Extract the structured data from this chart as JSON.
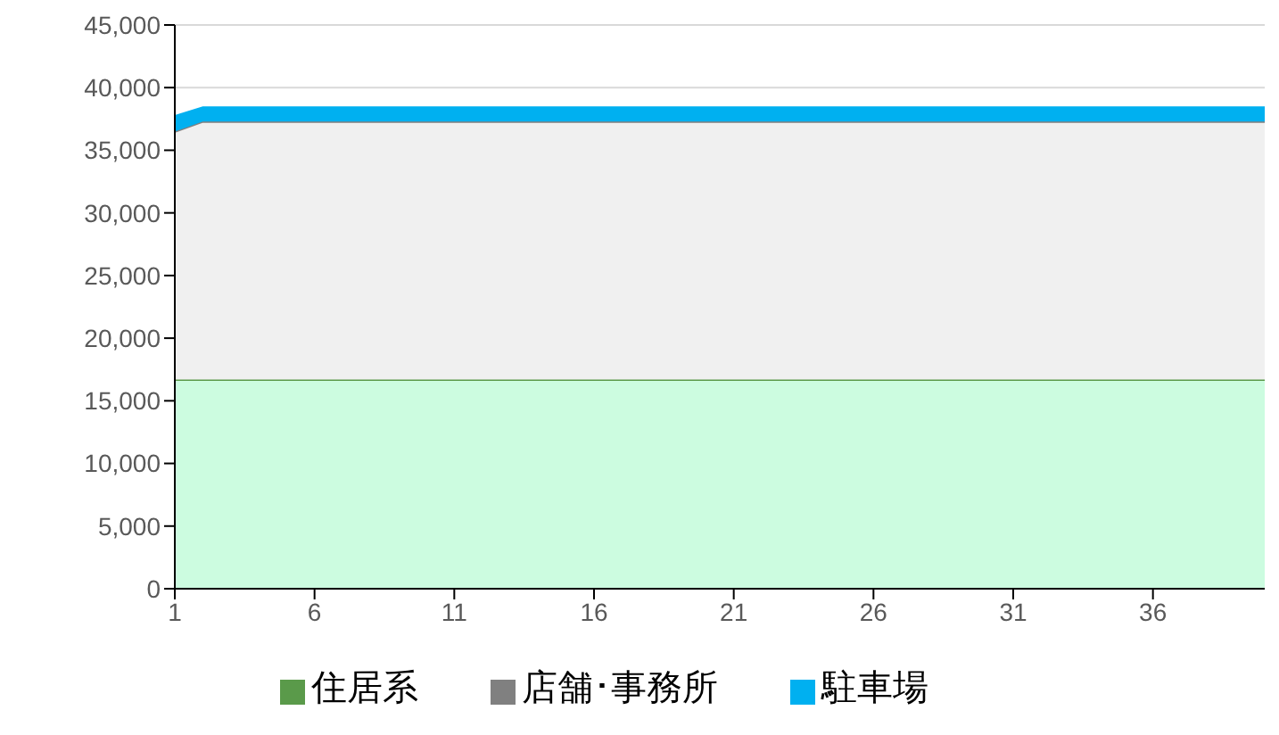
{
  "chart_data": {
    "type": "area",
    "stacked": true,
    "x": [
      1,
      2,
      3,
      4,
      5,
      6,
      7,
      8,
      9,
      10,
      11,
      12,
      13,
      14,
      15,
      16,
      17,
      18,
      19,
      20,
      21,
      22,
      23,
      24,
      25,
      26,
      27,
      28,
      29,
      30,
      31,
      32,
      33,
      34,
      35,
      36,
      37,
      38,
      39,
      40
    ],
    "series": [
      {
        "name": "住居系",
        "color": "#ccfce0",
        "values": [
          16700,
          16700,
          16700,
          16700,
          16700,
          16700,
          16700,
          16700,
          16700,
          16700,
          16700,
          16700,
          16700,
          16700,
          16700,
          16700,
          16700,
          16700,
          16700,
          16700,
          16700,
          16700,
          16700,
          16700,
          16700,
          16700,
          16700,
          16700,
          16700,
          16700,
          16700,
          16700,
          16700,
          16700,
          16700,
          16700,
          16700,
          16700,
          16700,
          16700
        ]
      },
      {
        "name": "店舗･事務所",
        "color": "#f0f0f0",
        "values": [
          19800,
          20600,
          20600,
          20600,
          20600,
          20600,
          20600,
          20600,
          20600,
          20600,
          20600,
          20600,
          20600,
          20600,
          20600,
          20600,
          20600,
          20600,
          20600,
          20600,
          20600,
          20600,
          20600,
          20600,
          20600,
          20600,
          20600,
          20600,
          20600,
          20600,
          20600,
          20600,
          20600,
          20600,
          20600,
          20600,
          20600,
          20600,
          20600,
          20600
        ]
      },
      {
        "name": "駐車場",
        "color": "#00b0f0",
        "values": [
          1300,
          1200,
          1200,
          1200,
          1200,
          1200,
          1200,
          1200,
          1200,
          1200,
          1200,
          1200,
          1200,
          1200,
          1200,
          1200,
          1200,
          1200,
          1200,
          1200,
          1200,
          1200,
          1200,
          1200,
          1200,
          1200,
          1200,
          1200,
          1200,
          1200,
          1200,
          1200,
          1200,
          1200,
          1200,
          1200,
          1200,
          1200,
          1200,
          1200
        ]
      }
    ],
    "xlim": [
      1,
      40
    ],
    "xticks": [
      1,
      6,
      11,
      16,
      21,
      26,
      31,
      36
    ],
    "ylim": [
      0,
      45000
    ],
    "yticks": [
      0,
      {
        "value": 5000,
        "label": "5,000"
      },
      {
        "value": 10000,
        "label": "10,000"
      },
      {
        "value": 15000,
        "label": "15,000"
      },
      {
        "value": 20000,
        "label": "20,000"
      },
      {
        "value": 25000,
        "label": "25,000"
      },
      {
        "value": 30000,
        "label": "30,000"
      },
      {
        "value": 35000,
        "label": "35,000"
      },
      {
        "value": 40000,
        "label": "40,000"
      },
      {
        "value": 45000,
        "label": "45,000"
      }
    ],
    "grid": "y",
    "legend": "bottom"
  }
}
